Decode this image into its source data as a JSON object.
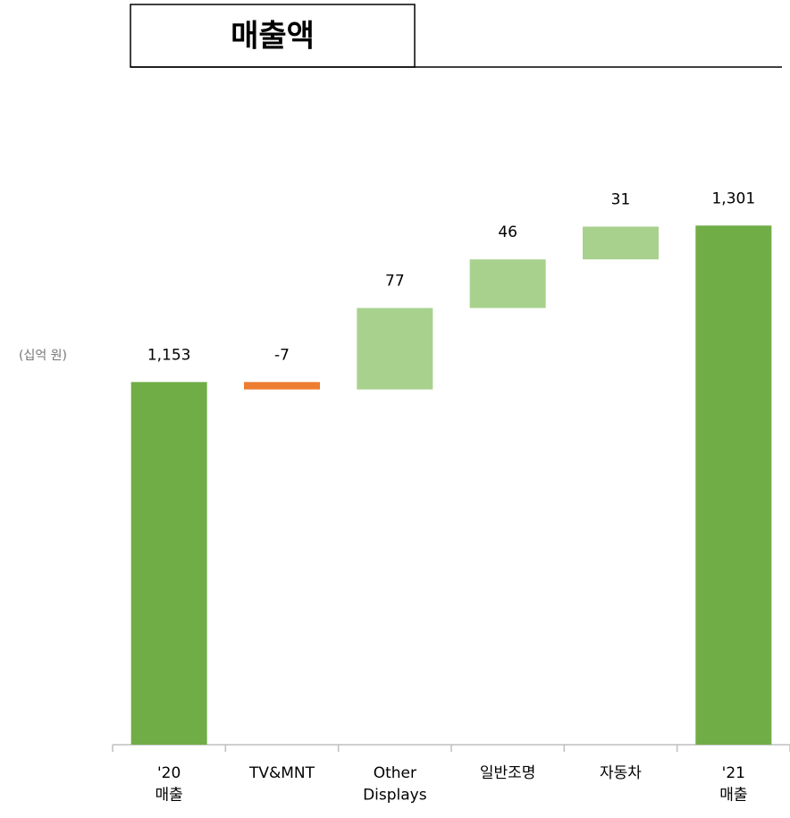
{
  "chart_data": {
    "type": "waterfall",
    "title": "매출액",
    "unit_label": "(십억 원)",
    "categories": [
      "'20\n매출",
      "TV&MNT",
      "Other\nDisplays",
      "일반조명",
      "자동차",
      "'21\n매출"
    ],
    "values": [
      1153,
      -7,
      77,
      46,
      31,
      1301
    ],
    "value_labels": [
      "1,153",
      "-7",
      "77",
      "46",
      "31",
      "1,301"
    ],
    "is_total": [
      true,
      false,
      false,
      false,
      false,
      true
    ],
    "colors": {
      "total": "#70ad47",
      "increase": "#a9d18e",
      "decrease": "#ed7d31"
    },
    "ylim": [
      810,
      1330
    ]
  }
}
